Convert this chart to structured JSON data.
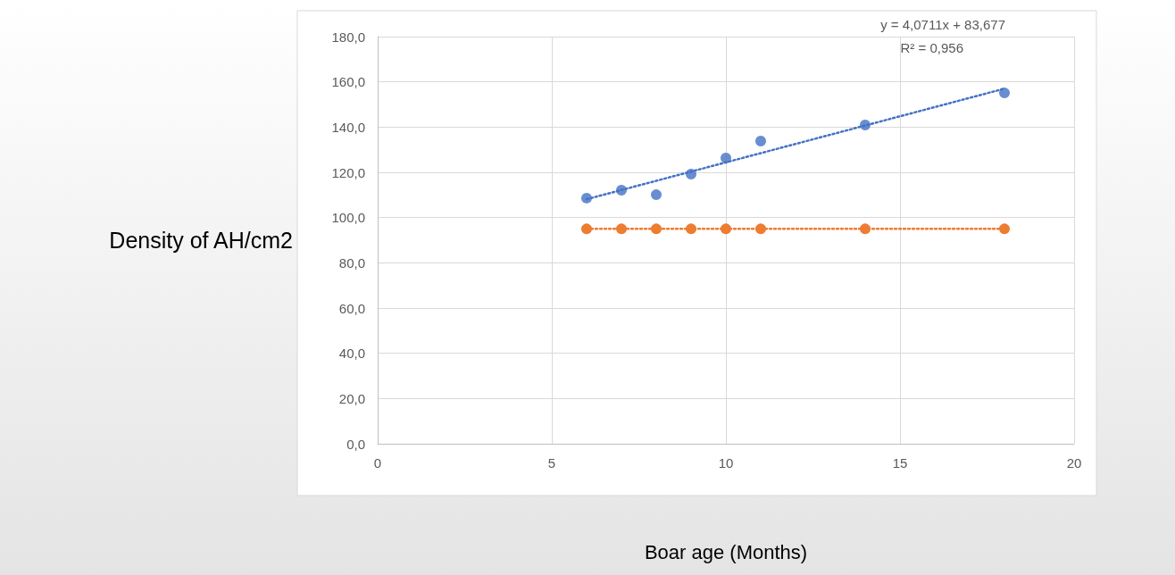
{
  "chart_data": {
    "type": "scatter",
    "xlabel": "Boar age (Months)",
    "ylabel": "Density of AH/cm2",
    "xlim": [
      0,
      20
    ],
    "xticks": [
      0,
      5,
      10,
      15,
      20
    ],
    "ylim": [
      0,
      180
    ],
    "yticks": [
      {
        "value": 0,
        "label": "0,0"
      },
      {
        "value": 20,
        "label": "20,0"
      },
      {
        "value": 40,
        "label": "40,0"
      },
      {
        "value": 60,
        "label": "60,0"
      },
      {
        "value": 80,
        "label": "80,0"
      },
      {
        "value": 100,
        "label": "100,0"
      },
      {
        "value": 120,
        "label": "120,0"
      },
      {
        "value": 140,
        "label": "140,0"
      },
      {
        "value": 160,
        "label": "160,0"
      },
      {
        "value": 180,
        "label": "180,0"
      }
    ],
    "grid": true,
    "marker": "circle",
    "series": [
      {
        "color": "#4472c4",
        "x": [
          6,
          7,
          8,
          9,
          10,
          11,
          14,
          18
        ],
        "values": [
          108.6,
          112.1,
          110.1,
          119.2,
          126.3,
          133.8,
          140.9,
          155.1
        ]
      },
      {
        "type": "line",
        "color": "#4472c4",
        "marker": "none",
        "line_style": "dotted",
        "x": [
          6,
          18
        ],
        "values": [
          108.1,
          157.0
        ]
      },
      {
        "type": "line",
        "color": "#ed7d31",
        "line_style": "dotted",
        "x": [
          6,
          7,
          8,
          9,
          10,
          11,
          14,
          18
        ],
        "values": [
          95,
          95,
          95,
          95,
          95,
          95,
          95,
          95
        ]
      }
    ],
    "annotations": [
      "y = 4,0711x + 83,677",
      "R² = 0,956"
    ]
  }
}
